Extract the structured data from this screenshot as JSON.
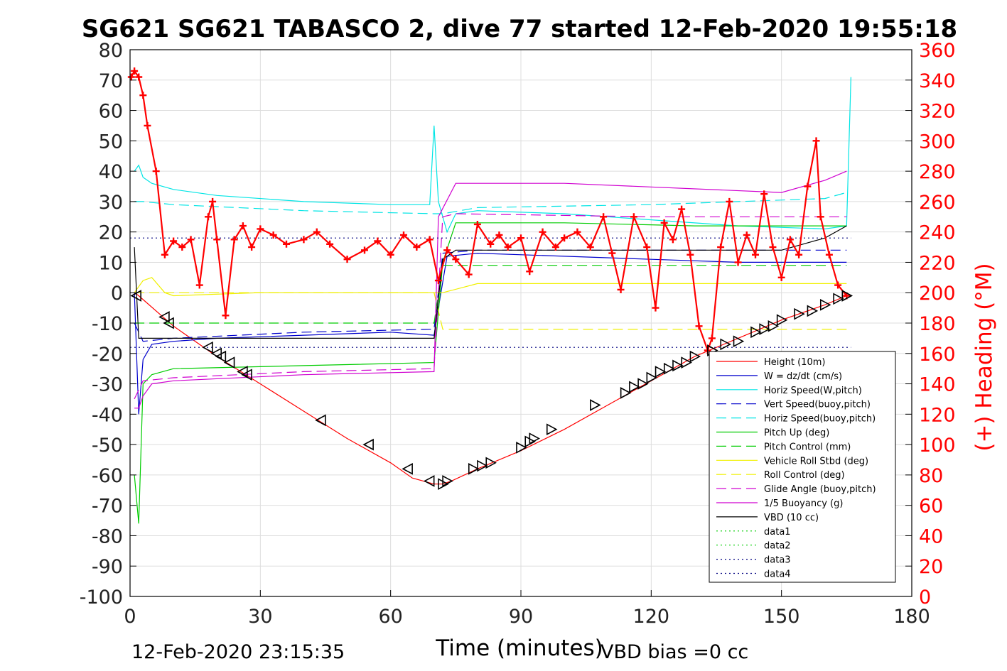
{
  "chart_data": {
    "type": "line",
    "title": "SG621 SG621 TABASCO 2, dive 77 started 12-Feb-2020 19:55:18",
    "xlabel": "Time (minutes)",
    "ylabel_right": "(+) Heading (°M)",
    "xlim": [
      0,
      180
    ],
    "ylim": [
      -100,
      80
    ],
    "ylim_right": [
      0,
      360
    ],
    "x_ticks": [
      "0",
      "30",
      "60",
      "90",
      "120",
      "150",
      "180"
    ],
    "y_ticks": [
      "80",
      "70",
      "60",
      "50",
      "40",
      "30",
      "20",
      "10",
      "0",
      "-10",
      "-20",
      "-30",
      "-40",
      "-50",
      "-60",
      "-70",
      "-80",
      "-90",
      "-100"
    ],
    "y_right_ticks": [
      "360",
      "340",
      "320",
      "300",
      "280",
      "260",
      "240",
      "220",
      "200",
      "180",
      "160",
      "140",
      "120",
      "100",
      "80",
      "60",
      "40",
      "20",
      "0"
    ],
    "grid": true,
    "legend_position": "bottom-right",
    "footer_left": "12-Feb-2020 23:15:35",
    "footer_right": "VBD bias =0 cc",
    "colors": {
      "red": "#ff0000",
      "blue": "#0000cc",
      "cyan": "#00e5e5",
      "green": "#00cc00",
      "yellow": "#f0f000",
      "magenta": "#d000d0",
      "black": "#000000",
      "navy": "#000080"
    },
    "series": [
      {
        "name": "Height (10m)",
        "color": "#ff0000",
        "dash": "solid",
        "axis": "left",
        "x": [
          1,
          2,
          10,
          20,
          30,
          40,
          50,
          60,
          65,
          70,
          72,
          74,
          80,
          90,
          100,
          110,
          120,
          130,
          140,
          150,
          160,
          165
        ],
        "y": [
          0,
          -1,
          -11,
          -21,
          -30,
          -39,
          -48,
          -56,
          -61,
          -63,
          -63,
          -62,
          -58,
          -52,
          -45,
          -37,
          -29,
          -21,
          -15,
          -9,
          -4,
          -1
        ]
      },
      {
        "name": "W = dz/dt (cm/s)",
        "color": "#0000cc",
        "dash": "solid",
        "axis": "left",
        "x": [
          1,
          2,
          3,
          5,
          10,
          20,
          40,
          60,
          70,
          71,
          73,
          80,
          100,
          120,
          140,
          160,
          165
        ],
        "y": [
          0,
          -40,
          -22,
          -17,
          -16,
          -15,
          -14,
          -13,
          -14,
          -5,
          12,
          13,
          12,
          11,
          10,
          10,
          10
        ]
      },
      {
        "name": "Horiz Speed(W,pitch)",
        "color": "#00e5e5",
        "dash": "solid",
        "axis": "left",
        "x": [
          1,
          2,
          3,
          5,
          10,
          20,
          40,
          60,
          69,
          70,
          71,
          73,
          75,
          80,
          100,
          120,
          140,
          160,
          165,
          166
        ],
        "y": [
          40,
          42,
          38,
          36,
          34,
          32,
          30,
          29,
          29,
          55,
          30,
          20,
          26,
          27,
          26,
          24,
          22,
          21,
          22,
          71
        ]
      },
      {
        "name": "Vert Speed(buoy,pitch)",
        "color": "#0000cc",
        "dash": "dashed",
        "axis": "left",
        "x": [
          1,
          3,
          10,
          40,
          70,
          72,
          80,
          120,
          160,
          165
        ],
        "y": [
          -10,
          -16,
          -15,
          -13,
          -12,
          13,
          14,
          14,
          14,
          14
        ]
      },
      {
        "name": "Horiz Speed(buoy,pitch)",
        "color": "#00e5e5",
        "dash": "dashed",
        "axis": "left",
        "x": [
          1,
          3,
          10,
          40,
          70,
          72,
          80,
          120,
          160,
          165
        ],
        "y": [
          30,
          30,
          29,
          27,
          26,
          26,
          28,
          29,
          31,
          33
        ]
      },
      {
        "name": "Pitch Up (deg)",
        "color": "#00cc00",
        "dash": "solid",
        "axis": "left",
        "x": [
          1,
          2,
          3,
          5,
          10,
          40,
          70,
          72,
          75,
          100,
          130,
          165
        ],
        "y": [
          -60,
          -76,
          -30,
          -27,
          -25,
          -24,
          -23,
          10,
          23,
          23,
          22,
          22
        ]
      },
      {
        "name": "Pitch Control (mm)",
        "color": "#00cc00",
        "dash": "dashed",
        "axis": "left",
        "x": [
          1,
          3,
          70,
          72,
          165
        ],
        "y": [
          -10,
          -10,
          -10,
          9,
          9
        ]
      },
      {
        "name": "Vehicle Roll Stbd (deg)",
        "color": "#f0f000",
        "dash": "solid",
        "axis": "left",
        "x": [
          1,
          3,
          5,
          8,
          10,
          30,
          50,
          69,
          72,
          80,
          100,
          120,
          140,
          160,
          165
        ],
        "y": [
          0,
          4,
          5,
          0,
          -1,
          0,
          0,
          0,
          0,
          3,
          3,
          3,
          3,
          3,
          3
        ]
      },
      {
        "name": "Roll Control (deg)",
        "color": "#f0f000",
        "dash": "dashed",
        "axis": "left",
        "x": [
          1,
          70,
          72,
          165
        ],
        "y": [
          0,
          0,
          -12,
          -12
        ]
      },
      {
        "name": "Glide Angle (buoy,pitch)",
        "color": "#d000d0",
        "dash": "dashed",
        "axis": "left",
        "x": [
          1,
          3,
          10,
          40,
          70,
          72,
          75,
          120,
          165
        ],
        "y": [
          -35,
          -29,
          -28,
          -26,
          -25,
          25,
          26,
          25,
          25
        ]
      },
      {
        "name": "1/5 Buoyancy (g)",
        "color": "#d000d0",
        "dash": "solid",
        "axis": "left",
        "x": [
          1,
          2,
          3,
          5,
          10,
          40,
          70,
          71,
          75,
          100,
          150,
          160,
          165
        ],
        "y": [
          -38,
          -38,
          -34,
          -30,
          -29,
          -27,
          -26,
          25,
          36,
          36,
          33,
          37,
          40
        ]
      },
      {
        "name": "VBD (10 cc)",
        "color": "#000000",
        "dash": "solid",
        "axis": "left",
        "x": [
          1,
          2,
          70,
          72,
          75,
          100,
          150,
          160,
          165
        ],
        "y": [
          15,
          -15,
          -15,
          11,
          14,
          14,
          14,
          18,
          22
        ]
      },
      {
        "name": "data1",
        "color": "#00cc00",
        "dash": "dotted",
        "axis": "left",
        "x": [],
        "y": []
      },
      {
        "name": "data2",
        "color": "#00cc00",
        "dash": "dotted",
        "axis": "left",
        "x": [],
        "y": []
      },
      {
        "name": "data3",
        "color": "#000080",
        "dash": "dotted",
        "axis": "left",
        "x": [
          0,
          166
        ],
        "y": [
          18,
          18
        ]
      },
      {
        "name": "data4",
        "color": "#000080",
        "dash": "dotted",
        "axis": "left",
        "x": [
          0,
          166
        ],
        "y": [
          -18,
          -18
        ]
      }
    ],
    "heading": {
      "axis": "right",
      "color": "#ff0000",
      "marker": "+",
      "x": [
        0.3,
        1,
        2,
        3,
        4,
        6,
        8,
        10,
        12,
        14,
        16,
        18,
        19,
        20,
        22,
        24,
        26,
        28,
        30,
        33,
        36,
        40,
        43,
        46,
        50,
        54,
        57,
        60,
        63,
        66,
        69,
        71,
        73,
        75,
        78,
        80,
        83,
        85,
        87,
        90,
        92,
        95,
        98,
        100,
        103,
        106,
        109,
        111,
        113,
        116,
        119,
        121,
        123,
        125,
        127,
        129,
        131,
        133,
        134,
        136,
        138,
        140,
        142,
        144,
        146,
        148,
        150,
        152,
        154,
        156,
        158,
        159,
        161,
        163,
        165
      ],
      "y": [
        342,
        346,
        342,
        330,
        310,
        280,
        225,
        234,
        230,
        235,
        205,
        250,
        260,
        235,
        185,
        235,
        244,
        230,
        242,
        238,
        232,
        235,
        240,
        232,
        222,
        228,
        234,
        225,
        238,
        230,
        235,
        208,
        228,
        222,
        212,
        245,
        232,
        238,
        230,
        236,
        214,
        240,
        230,
        236,
        240,
        230,
        250,
        226,
        202,
        250,
        230,
        190,
        246,
        235,
        255,
        225,
        178,
        162,
        170,
        230,
        260,
        220,
        238,
        225,
        265,
        230,
        210,
        235,
        225,
        270,
        300,
        250,
        225,
        205,
        198
      ]
    },
    "triangles": {
      "marker": "triangle",
      "color": "#000000",
      "x": [
        1.5,
        8,
        9,
        18,
        20,
        21,
        23,
        26,
        27,
        44,
        55,
        64,
        69,
        72,
        73,
        79,
        81,
        83,
        90,
        92,
        93,
        97,
        107,
        114,
        116,
        118,
        120,
        122,
        124,
        126,
        128,
        130,
        134,
        137,
        140,
        144,
        146,
        148,
        150,
        154,
        157,
        160,
        163,
        165
      ],
      "y": [
        -1,
        -8,
        -10,
        -18,
        -20,
        -21,
        -23,
        -26,
        -27,
        -42,
        -50,
        -58,
        -62,
        -63,
        -62,
        -58,
        -57,
        -56,
        -51,
        -49,
        -48,
        -45,
        -37,
        -33,
        -31,
        -30,
        -28,
        -26,
        -25,
        -24,
        -23,
        -21,
        -19,
        -17,
        -16,
        -13,
        -12,
        -11,
        -9,
        -7,
        -6,
        -4,
        -2,
        -1
      ]
    }
  }
}
